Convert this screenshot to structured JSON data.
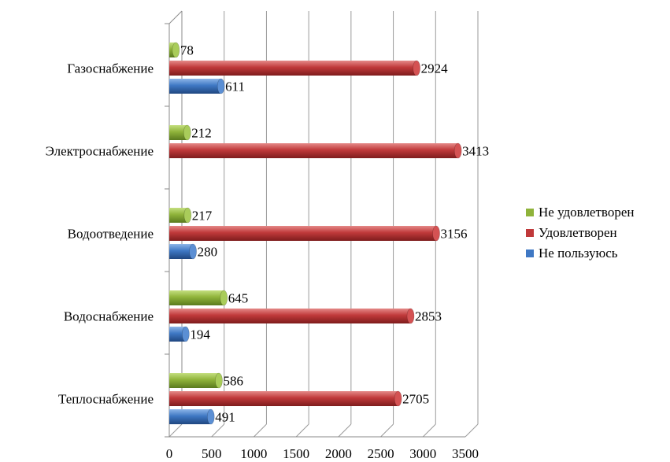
{
  "chart_data": {
    "type": "bar",
    "orientation": "horizontal",
    "style": "3d-cylinder",
    "categories": [
      "Газоснабжение",
      "Электроснабжение",
      "Водоотведение",
      "Водоснабжение",
      "Теплоснабжение"
    ],
    "series": [
      {
        "name": "Не удовлетворен",
        "color": "#8fb33a",
        "values": [
          78,
          212,
          217,
          645,
          586
        ]
      },
      {
        "name": "Удовлетворен",
        "color": "#c0393a",
        "values": [
          2924,
          3413,
          3156,
          2853,
          2705
        ]
      },
      {
        "name": "Не пользуюсь",
        "color": "#3f78c4",
        "values": [
          611,
          null,
          280,
          194,
          491
        ]
      }
    ],
    "xticks": [
      0,
      500,
      1000,
      1500,
      2000,
      2500,
      3000,
      3500
    ],
    "xlim": [
      0,
      3500
    ],
    "grid": true,
    "legend": "right"
  }
}
